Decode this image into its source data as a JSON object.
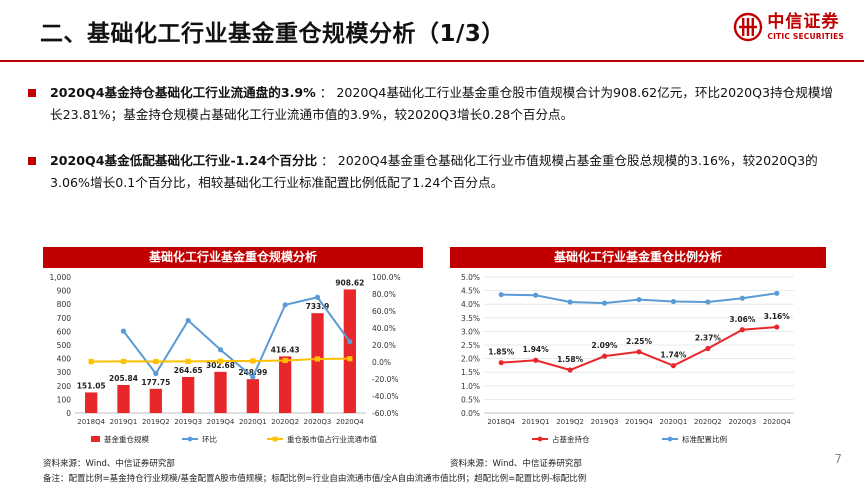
{
  "header": {
    "title": "二、基础化工行业基金重仓规模分析（1/3）",
    "logo_cn": "中信证券",
    "logo_en": "CITIC SECURITIES"
  },
  "bullets": [
    {
      "lead": "2020Q4基金持仓基础化工行业流通盘的3.9%",
      "sep": " ： ",
      "body": "2020Q4基础化工行业基金重仓股市值规模合计为908.62亿元，环比2020Q3持仓规模增长23.81%；基金持仓规模占基础化工行业流通市值的3.9%，较2020Q3增长0.28个百分点。"
    },
    {
      "lead": "2020Q4基金低配基础化工行业-1.24个百分比",
      "sep": " ： ",
      "body": "2020Q4基金重仓基础化工行业市值规模占基金重仓股总规模的3.16%，较2020Q3的3.06%增长0.1个百分比，相较基础化工行业标准配置比例低配了1.24个百分点。"
    }
  ],
  "chart_data": [
    {
      "type": "bar",
      "title": "基础化工行业基金重仓规模分析",
      "categories": [
        "2018Q4",
        "2019Q1",
        "2019Q2",
        "2019Q3",
        "2019Q4",
        "2020Q1",
        "2020Q2",
        "2020Q3",
        "2020Q4"
      ],
      "series": [
        {
          "name": "基金重仓规模",
          "kind": "bar",
          "axis": "left",
          "values": [
            151.05,
            205.84,
            177.75,
            264.65,
            302.68,
            248.99,
            416.43,
            733.9,
            908.62
          ],
          "labels": [
            "151.05",
            "205.84",
            "177.75",
            "264.65",
            "302.68",
            "248.99",
            "416.43",
            "733.9",
            "908.62"
          ],
          "color": "#e8272a"
        },
        {
          "name": "环比",
          "kind": "line",
          "axis": "right",
          "values": [
            null,
            36.3,
            -13.6,
            48.9,
            14.4,
            -17.7,
            67.2,
            76.2,
            23.8
          ],
          "color": "#5b9bd5"
        },
        {
          "name": "重仓股市值占行业流通市值",
          "kind": "line",
          "axis": "right",
          "values": [
            0.5,
            0.7,
            0.6,
            0.8,
            1.0,
            1.2,
            1.8,
            3.6,
            3.9
          ],
          "color": "#ffc000"
        }
      ],
      "ylim_left": [
        0,
        1000
      ],
      "yticks_left": [
        "0",
        "100",
        "200",
        "300",
        "400",
        "500",
        "600",
        "700",
        "800",
        "900",
        "1,000"
      ],
      "ylim_right": [
        -60,
        100
      ],
      "yticks_right": [
        "-60.0%",
        "-40.0%",
        "-20.0%",
        "0.0%",
        "20.0%",
        "40.0%",
        "60.0%",
        "80.0%",
        "100.0%"
      ],
      "legend_position": "bottom",
      "source": "资料来源：Wind、中信证券研究部"
    },
    {
      "type": "line",
      "title": "基础化工行业基金重仓比例分析",
      "categories": [
        "2018Q4",
        "2019Q1",
        "2019Q2",
        "2019Q3",
        "2019Q4",
        "2020Q1",
        "2020Q2",
        "2020Q3",
        "2020Q4"
      ],
      "series": [
        {
          "name": "占基金持仓",
          "values": [
            1.85,
            1.94,
            1.58,
            2.09,
            2.25,
            1.74,
            2.37,
            3.06,
            3.16
          ],
          "labels": [
            "1.85%",
            "1.94%",
            "1.58%",
            "2.09%",
            "2.25%",
            "1.74%",
            "2.37%",
            "3.06%",
            "3.16%"
          ],
          "color": "#e8272a"
        },
        {
          "name": "标准配置比例",
          "values": [
            4.35,
            4.33,
            4.08,
            4.04,
            4.17,
            4.1,
            4.08,
            4.22,
            4.4
          ],
          "color": "#5b9bd5"
        }
      ],
      "ylim": [
        0,
        5
      ],
      "yticks": [
        "0.0%",
        "0.5%",
        "1.0%",
        "1.5%",
        "2.0%",
        "2.5%",
        "3.0%",
        "3.5%",
        "4.0%",
        "4.5%",
        "5.0%"
      ],
      "legend_position": "bottom",
      "source": "资料来源：Wind、中信证券研究部"
    }
  ],
  "footer": {
    "note": "备注：配置比例=基金持仓行业规模/基金配置A股市值规模；标配比例=行业自由流通市值/全A自由流通市值比例；超配比例=配置比例-标配比例",
    "page_number": "7"
  },
  "colors": {
    "brand": "#c00000"
  }
}
